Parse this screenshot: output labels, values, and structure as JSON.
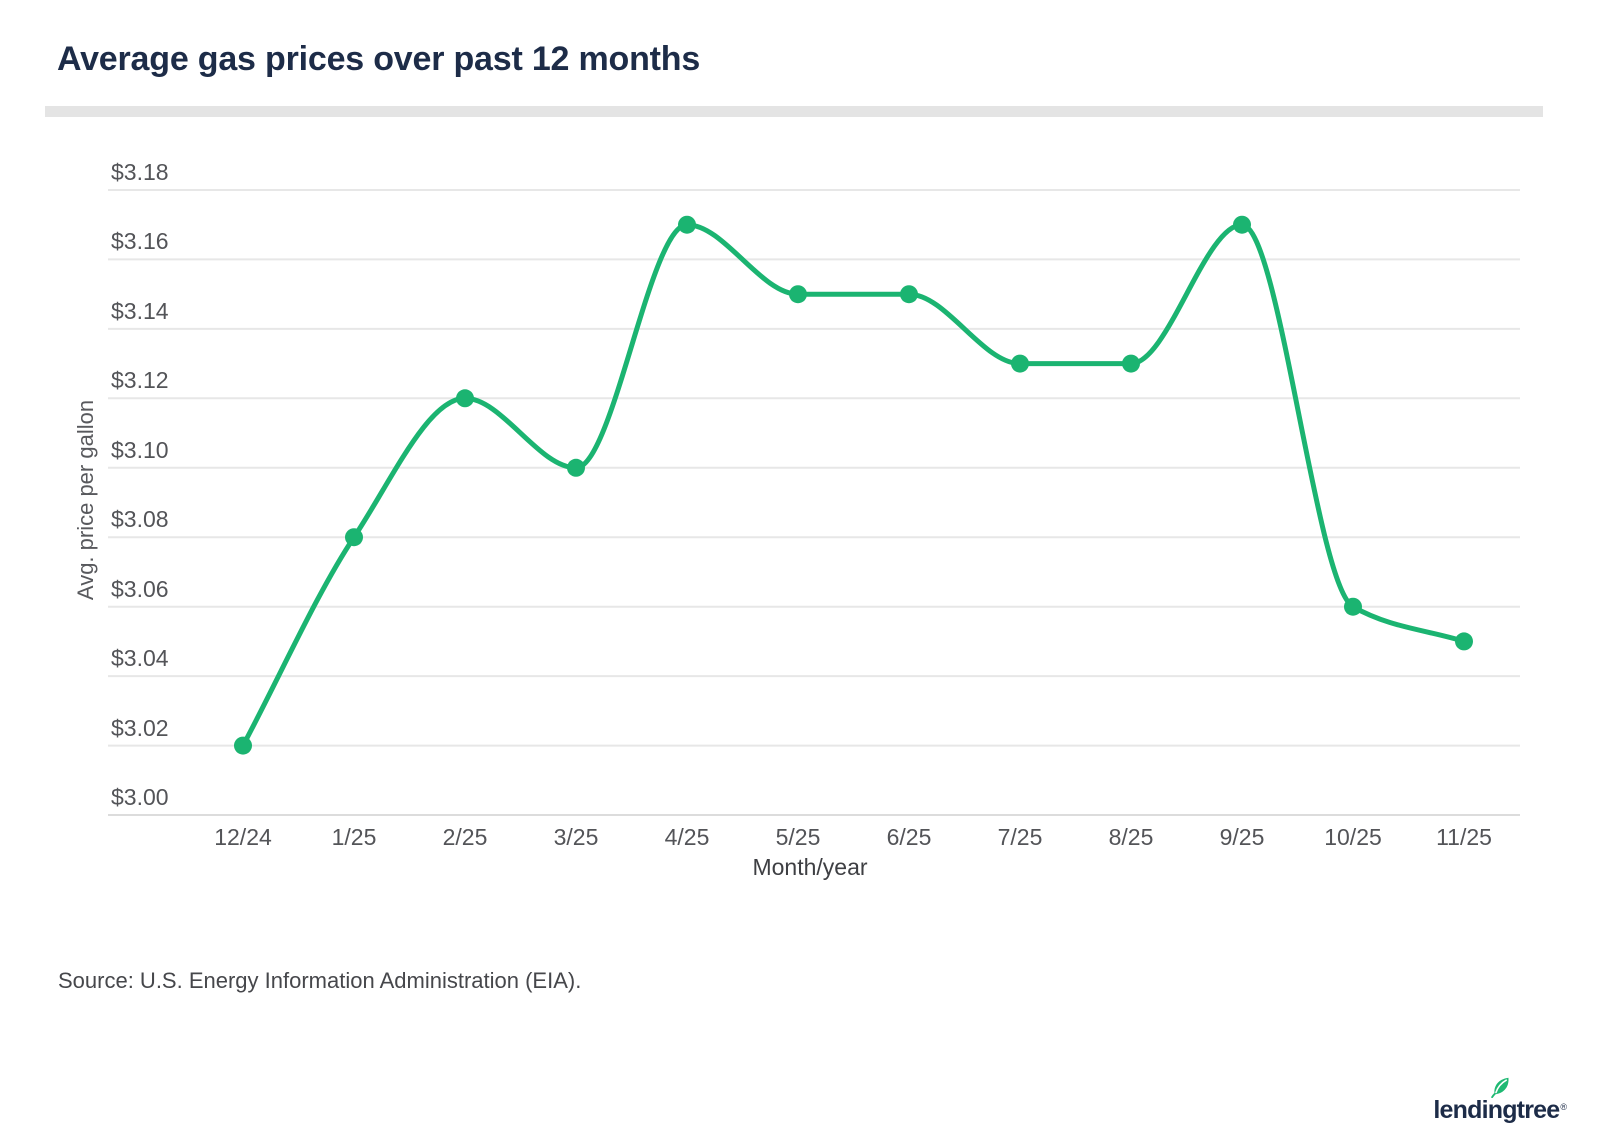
{
  "title": "Average gas prices over past 12 months",
  "source": "Source: U.S. Energy Information Administration (EIA).",
  "logo": {
    "text": "lendingtree",
    "mark": "®",
    "leaf_icon": "leaf-icon"
  },
  "colors": {
    "accent_green": "#1BB471",
    "navy": "#1D2C48",
    "grid": "#E7E7E7",
    "axis_line": "#DCDCDC",
    "tick_text": "#535458"
  },
  "chart_data": {
    "type": "line",
    "title": "Average gas prices over past 12 months",
    "xlabel": "Month/year",
    "ylabel": "Avg. price per gallon",
    "categories": [
      "12/24",
      "1/25",
      "2/25",
      "3/25",
      "4/25",
      "5/25",
      "6/25",
      "7/25",
      "8/25",
      "9/25",
      "10/25",
      "11/25"
    ],
    "series": [
      {
        "name": "Avg. gas price",
        "values": [
          3.02,
          3.08,
          3.12,
          3.1,
          3.17,
          3.15,
          3.15,
          3.13,
          3.13,
          3.17,
          3.06,
          3.05
        ]
      }
    ],
    "ylim": [
      3.0,
      3.18
    ],
    "ytick_step": 0.02,
    "ytick_labels": [
      "$3.00",
      "$3.02",
      "$3.04",
      "$3.06",
      "$3.08",
      "$3.10",
      "$3.12",
      "$3.14",
      "$3.16",
      "$3.18"
    ],
    "grid": true,
    "legend": "none",
    "marker": "circle",
    "line_color": "#1BB471"
  }
}
